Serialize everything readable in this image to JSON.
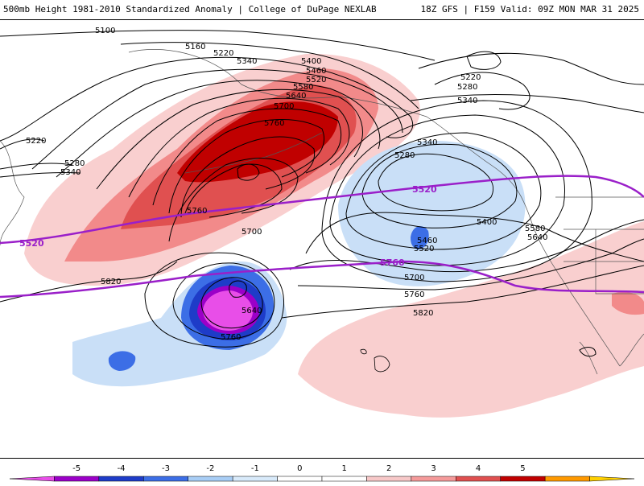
{
  "header": {
    "title": "500mb Height 1981-2010 Standardized Anomaly | College of DuPage NEXLAB",
    "run_info": "18Z GFS | F159 Valid: 09Z MON MAR 31 2025"
  },
  "contour_labels": [
    "5100",
    "5160",
    "5220",
    "5340",
    "5400",
    "5460",
    "5520",
    "5580",
    "5640",
    "5700",
    "5760",
    "5220",
    "5280",
    "5340",
    "5280",
    "5340",
    "5400",
    "5460",
    "5520",
    "5580",
    "5640",
    "5700",
    "5760",
    "5820",
    "5640",
    "5760",
    "5700",
    "5820",
    "5760",
    "5220",
    "5280",
    "5340"
  ],
  "purple_labels": [
    "5520",
    "5520",
    "5760"
  ],
  "colorbar": {
    "ticks": [
      "-5",
      "-4",
      "-3",
      "-2",
      "-1",
      "0",
      "1",
      "2",
      "3",
      "4",
      "5"
    ],
    "colors": [
      "#e84ee8",
      "#9b00c8",
      "#1e3cc8",
      "#3c6ee6",
      "#a8cdf5",
      "#d8eafa",
      "#ffffff",
      "#ffffff",
      "#f7c8c8",
      "#f59a9a",
      "#e05050",
      "#c00000",
      "#ff9900",
      "#ffd000"
    ]
  },
  "colors": {
    "purple_contour": "#9a1fc9",
    "contour": "#000000"
  }
}
